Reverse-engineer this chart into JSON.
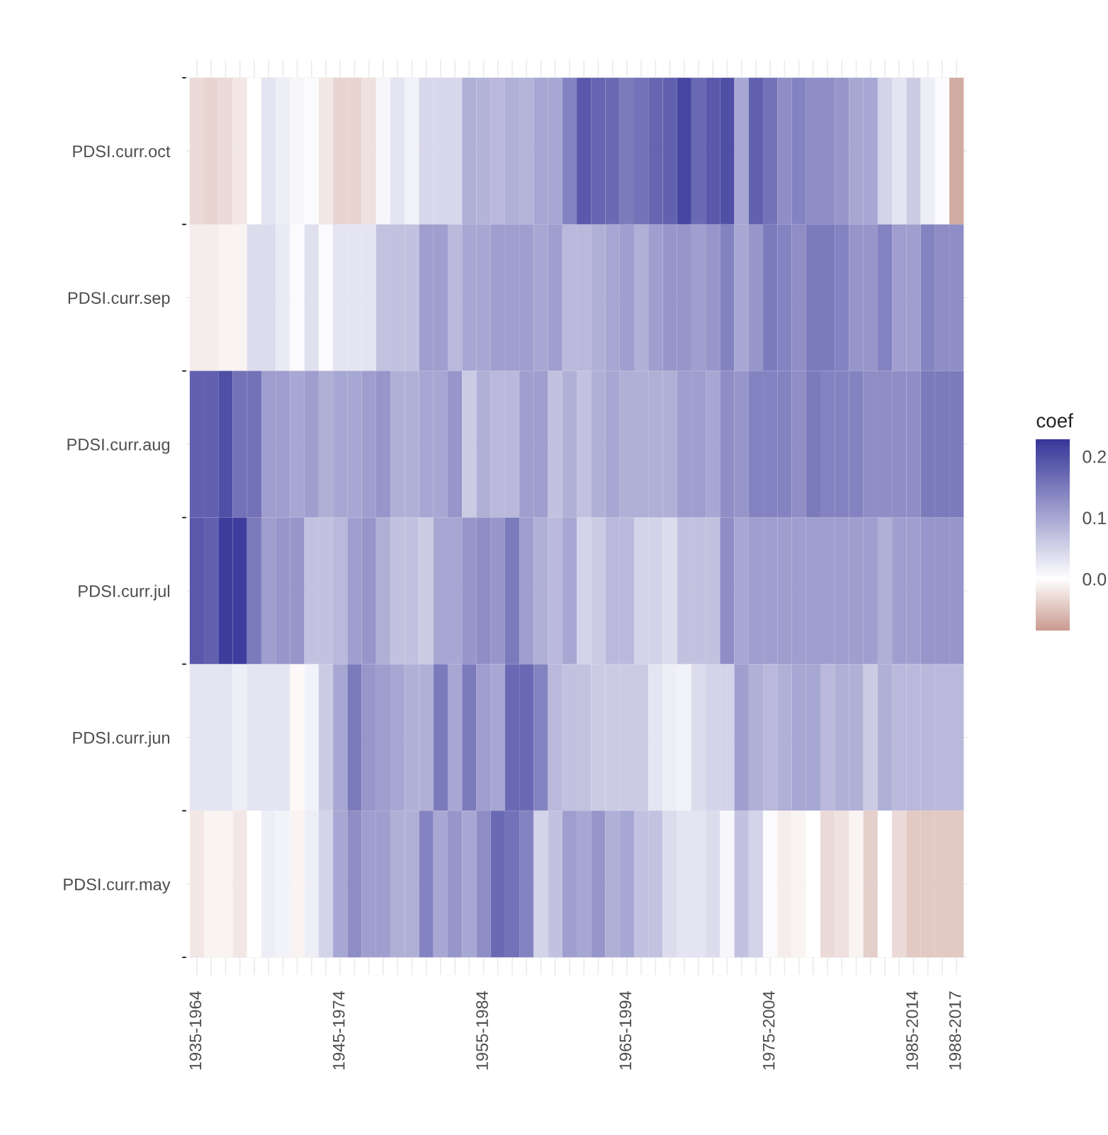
{
  "chart_data": {
    "type": "heatmap",
    "clabel": "coef",
    "categories": [
      "1935-1964",
      null,
      null,
      null,
      null,
      null,
      null,
      null,
      null,
      null,
      "1945-1974",
      null,
      null,
      null,
      null,
      null,
      null,
      null,
      null,
      null,
      "1955-1984",
      null,
      null,
      null,
      null,
      null,
      null,
      null,
      null,
      null,
      "1965-1994",
      null,
      null,
      null,
      null,
      null,
      null,
      null,
      null,
      null,
      "1975-2004",
      null,
      null,
      null,
      null,
      null,
      null,
      null,
      null,
      null,
      "1985-2014",
      null,
      null,
      "1988-2017"
    ],
    "y_categories": [
      "PDSI.curr.oct",
      "PDSI.curr.sep",
      "PDSI.curr.aug",
      "PDSI.curr.jul",
      "PDSI.curr.jun",
      "PDSI.curr.may"
    ],
    "cells": [
      [
        -0.03,
        -0.035,
        -0.03,
        -0.02,
        0.0,
        0.03,
        0.02,
        0.01,
        0.005,
        -0.02,
        -0.035,
        -0.035,
        -0.025,
        0.01,
        0.03,
        0.015,
        0.045,
        0.045,
        0.045,
        0.09,
        0.085,
        0.08,
        0.09,
        0.085,
        0.1,
        0.1,
        0.14,
        0.19,
        0.175,
        0.17,
        0.15,
        0.16,
        0.175,
        0.18,
        0.21,
        0.17,
        0.19,
        0.2,
        0.1,
        0.18,
        0.16,
        0.13,
        0.14,
        0.13,
        0.13,
        0.12,
        0.1,
        0.1,
        0.05,
        0.03,
        0.06,
        0.02,
        0.005,
        -0.07
      ],
      [
        -0.015,
        -0.015,
        -0.01,
        -0.01,
        0.04,
        0.04,
        0.025,
        0.005,
        0.035,
        0.005,
        0.03,
        0.03,
        0.03,
        0.07,
        0.07,
        0.07,
        0.11,
        0.11,
        0.08,
        0.1,
        0.1,
        0.11,
        0.11,
        0.11,
        0.1,
        0.11,
        0.08,
        0.08,
        0.09,
        0.1,
        0.11,
        0.09,
        0.11,
        0.12,
        0.12,
        0.11,
        0.12,
        0.14,
        0.1,
        0.12,
        0.15,
        0.14,
        0.13,
        0.15,
        0.15,
        0.14,
        0.12,
        0.12,
        0.14,
        0.11,
        0.11,
        0.14,
        0.13,
        0.13
      ],
      [
        0.18,
        0.18,
        0.2,
        0.16,
        0.16,
        0.11,
        0.11,
        0.1,
        0.11,
        0.09,
        0.1,
        0.1,
        0.11,
        0.12,
        0.09,
        0.09,
        0.1,
        0.1,
        0.12,
        0.06,
        0.09,
        0.08,
        0.08,
        0.11,
        0.11,
        0.07,
        0.09,
        0.07,
        0.09,
        0.1,
        0.09,
        0.09,
        0.09,
        0.09,
        0.11,
        0.11,
        0.1,
        0.13,
        0.12,
        0.14,
        0.14,
        0.14,
        0.13,
        0.15,
        0.14,
        0.14,
        0.14,
        0.13,
        0.13,
        0.13,
        0.13,
        0.15,
        0.15,
        0.15
      ],
      [
        0.19,
        0.18,
        0.22,
        0.22,
        0.15,
        0.11,
        0.12,
        0.12,
        0.07,
        0.07,
        0.08,
        0.11,
        0.12,
        0.09,
        0.07,
        0.07,
        0.06,
        0.1,
        0.1,
        0.12,
        0.13,
        0.12,
        0.15,
        0.11,
        0.09,
        0.08,
        0.1,
        0.05,
        0.06,
        0.08,
        0.08,
        0.05,
        0.05,
        0.04,
        0.07,
        0.07,
        0.07,
        0.13,
        0.1,
        0.11,
        0.11,
        0.11,
        0.11,
        0.11,
        0.11,
        0.11,
        0.11,
        0.11,
        0.09,
        0.11,
        0.11,
        0.12,
        0.12,
        0.12
      ],
      [
        0.03,
        0.03,
        0.03,
        0.02,
        0.03,
        0.03,
        0.03,
        -0.005,
        0.015,
        0.06,
        0.1,
        0.15,
        0.12,
        0.11,
        0.1,
        0.09,
        0.09,
        0.15,
        0.1,
        0.15,
        0.11,
        0.1,
        0.17,
        0.17,
        0.14,
        0.08,
        0.07,
        0.07,
        0.06,
        0.06,
        0.06,
        0.06,
        0.03,
        0.02,
        0.015,
        0.04,
        0.05,
        0.05,
        0.11,
        0.09,
        0.08,
        0.09,
        0.1,
        0.1,
        0.08,
        0.09,
        0.09,
        0.06,
        0.09,
        0.08,
        0.08,
        0.08,
        0.08,
        0.08
      ],
      [
        -0.02,
        -0.01,
        -0.01,
        -0.02,
        0.0,
        0.02,
        0.015,
        -0.01,
        0.02,
        0.05,
        0.1,
        0.13,
        0.11,
        0.11,
        0.09,
        0.09,
        0.14,
        0.1,
        0.12,
        0.1,
        0.13,
        0.17,
        0.16,
        0.14,
        0.05,
        0.07,
        0.11,
        0.1,
        0.12,
        0.09,
        0.1,
        0.07,
        0.07,
        0.04,
        0.03,
        0.03,
        0.04,
        0.01,
        0.07,
        0.05,
        0.005,
        -0.015,
        -0.01,
        0.0,
        -0.03,
        -0.025,
        -0.01,
        -0.04,
        0.0,
        -0.03,
        -0.045,
        -0.045,
        -0.045,
        -0.045
      ]
    ],
    "clim": [
      -0.085,
      0.228
    ],
    "cticks": [
      {
        "value": 0.0,
        "label": "0.0"
      },
      {
        "value": 0.1,
        "label": "0.1"
      },
      {
        "value": 0.2,
        "label": "0.2"
      }
    ],
    "grid": true
  }
}
